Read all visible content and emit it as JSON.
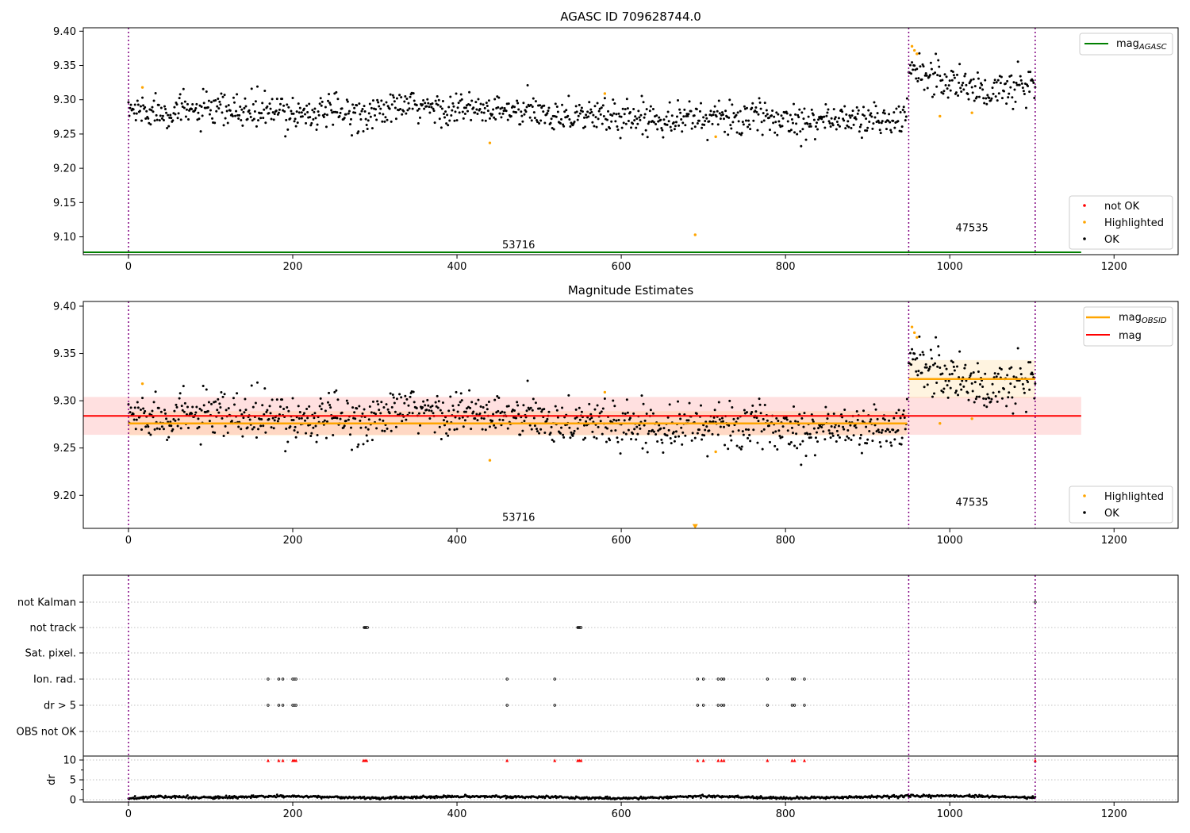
{
  "chart_data": [
    {
      "type": "scatter",
      "title": "AGASC ID 709628744.0",
      "xlim": [
        -55,
        1278
      ],
      "ylim": [
        9.074,
        9.405
      ],
      "xticks": [
        0,
        200,
        400,
        600,
        800,
        1000,
        1200
      ],
      "yticks": [
        9.1,
        9.15,
        9.2,
        9.25,
        9.3,
        9.35,
        9.4
      ],
      "xtick_labels": [
        "0",
        "200",
        "400",
        "600",
        "800",
        "1000",
        "1200"
      ],
      "ytick_labels": [
        "9.10",
        "9.15",
        "9.20",
        "9.25",
        "9.30",
        "9.35",
        "9.40"
      ],
      "obs_boundaries": [
        0,
        950,
        1104
      ],
      "obsid_labels": [
        {
          "text": "53716",
          "x": 475,
          "y": 9.083
        },
        {
          "text": "47535",
          "x": 1027,
          "y": 9.108
        }
      ],
      "mag_agasc": {
        "y": 9.0775,
        "x": [
          -55,
          1160
        ],
        "color": "#008000"
      },
      "ok_segments": [
        {
          "x_start": 0,
          "x_end": 948,
          "trend": [
            [
              0,
              9.285
            ],
            [
              300,
              9.28
            ],
            [
              330,
              9.29
            ],
            [
              600,
              9.275
            ],
            [
              948,
              9.27
            ]
          ],
          "spread": 0.012
        },
        {
          "x_start": 950,
          "x_end": 1104,
          "trend": [
            [
              950,
              9.35
            ],
            [
              990,
              9.33
            ],
            [
              1050,
              9.31
            ],
            [
              1104,
              9.325
            ]
          ],
          "spread": 0.015
        }
      ],
      "highlighted": [
        {
          "x": 17,
          "y": 9.318
        },
        {
          "x": 440,
          "y": 9.237
        },
        {
          "x": 580,
          "y": 9.309
        },
        {
          "x": 690,
          "y": 9.103
        },
        {
          "x": 715,
          "y": 9.246
        },
        {
          "x": 954,
          "y": 9.378
        },
        {
          "x": 957,
          "y": 9.372
        },
        {
          "x": 960,
          "y": 9.367
        },
        {
          "x": 988,
          "y": 9.276
        },
        {
          "x": 1027,
          "y": 9.281
        }
      ],
      "legend_top": [
        {
          "label": "mag",
          "sub": "AGASC",
          "color": "#008000",
          "kind": "line"
        }
      ],
      "legend_bottom": [
        {
          "label": "not OK",
          "color": "#ff0000",
          "kind": "dot"
        },
        {
          "label": "Highlighted",
          "color": "#ffa500",
          "kind": "dot"
        },
        {
          "label": "OK",
          "color": "#000000",
          "kind": "dot"
        }
      ]
    },
    {
      "type": "scatter",
      "title": "Magnitude Estimates",
      "xlim": [
        -55,
        1278
      ],
      "ylim": [
        9.165,
        9.405
      ],
      "xticks": [
        0,
        200,
        400,
        600,
        800,
        1000,
        1200
      ],
      "yticks": [
        9.2,
        9.25,
        9.3,
        9.35,
        9.4
      ],
      "xtick_labels": [
        "0",
        "200",
        "400",
        "600",
        "800",
        "1000",
        "1200"
      ],
      "ytick_labels": [
        "9.20",
        "9.25",
        "9.30",
        "9.35",
        "9.40"
      ],
      "obs_boundaries": [
        0,
        950,
        1104
      ],
      "obsid_labels": [
        {
          "text": "53716",
          "x": 475,
          "y": 9.173
        },
        {
          "text": "47535",
          "x": 1027,
          "y": 9.189
        }
      ],
      "mag_band": {
        "y": 9.284,
        "lo": 9.264,
        "hi": 9.304,
        "x": [
          -55,
          1160
        ],
        "color": "#ff0000"
      },
      "mag_obsid": [
        {
          "x": [
            0,
            948
          ],
          "y": 9.276,
          "lo": 9.263,
          "hi": 9.289
        },
        {
          "x": [
            950,
            1104
          ],
          "y": 9.323,
          "lo": 9.303,
          "hi": 9.343
        }
      ],
      "marker_down": {
        "x": 690,
        "y": 9.167,
        "color": "#ffa500"
      },
      "legend_top": [
        {
          "label": "mag",
          "sub": "OBSID",
          "color": "#ffa500",
          "kind": "line"
        },
        {
          "label": "mag",
          "sub": "",
          "color": "#ff0000",
          "kind": "line"
        }
      ],
      "legend_bottom": [
        {
          "label": "Highlighted",
          "color": "#ffa500",
          "kind": "dot"
        },
        {
          "label": "OK",
          "color": "#000000",
          "kind": "dot"
        }
      ]
    },
    {
      "type": "scatter",
      "title": "",
      "xlim": [
        -55,
        1278
      ],
      "categories": [
        "not Kalman",
        "not track",
        "Sat. pixel.",
        "Ion. rad.",
        "dr > 5",
        "OBS not OK"
      ],
      "flag_x": {
        "not Kalman": [
          1104
        ],
        "not track": [
          287,
          288,
          289,
          290,
          291,
          547,
          548,
          549,
          550,
          551
        ],
        "Sat. pixel.": [],
        "Ion. rad.": [
          170,
          183,
          188,
          200,
          202,
          204,
          461,
          519,
          693,
          700,
          718,
          722,
          725,
          778,
          808,
          811,
          823
        ],
        "dr > 5": [
          170,
          183,
          188,
          200,
          202,
          204,
          461,
          519,
          693,
          700,
          718,
          722,
          725,
          778,
          808,
          811,
          823
        ],
        "OBS not OK": []
      },
      "dr": {
        "ylim": [
          -0.6,
          11
        ],
        "yticks": [
          0,
          5,
          10
        ],
        "ytick_labels": [
          "0",
          "5",
          "10"
        ],
        "ylabel": "dr",
        "trend": [
          [
            0,
            0.2
          ],
          [
            30,
            0.8
          ],
          [
            100,
            0.5
          ],
          [
            200,
            0.9
          ],
          [
            300,
            0.4
          ],
          [
            400,
            0.8
          ],
          [
            500,
            0.7
          ],
          [
            600,
            0.3
          ],
          [
            700,
            0.9
          ],
          [
            800,
            0.4
          ],
          [
            900,
            0.7
          ],
          [
            1000,
            1.0
          ],
          [
            1104,
            0.5
          ]
        ],
        "outlier_x": [
          170,
          183,
          188,
          200,
          202,
          204,
          286,
          288,
          290,
          461,
          519,
          547,
          549,
          551,
          693,
          700,
          718,
          722,
          725,
          778,
          808,
          811,
          823,
          1104
        ],
        "outlier_y": 9.9,
        "outlier_color": "#ff0000"
      },
      "xtick_labels": [
        "0",
        "200",
        "400",
        "600",
        "800",
        "1000",
        "1200"
      ],
      "xticks": [
        0,
        200,
        400,
        600,
        800,
        1000,
        1200
      ],
      "obs_boundaries": [
        0,
        950,
        1104
      ]
    }
  ]
}
